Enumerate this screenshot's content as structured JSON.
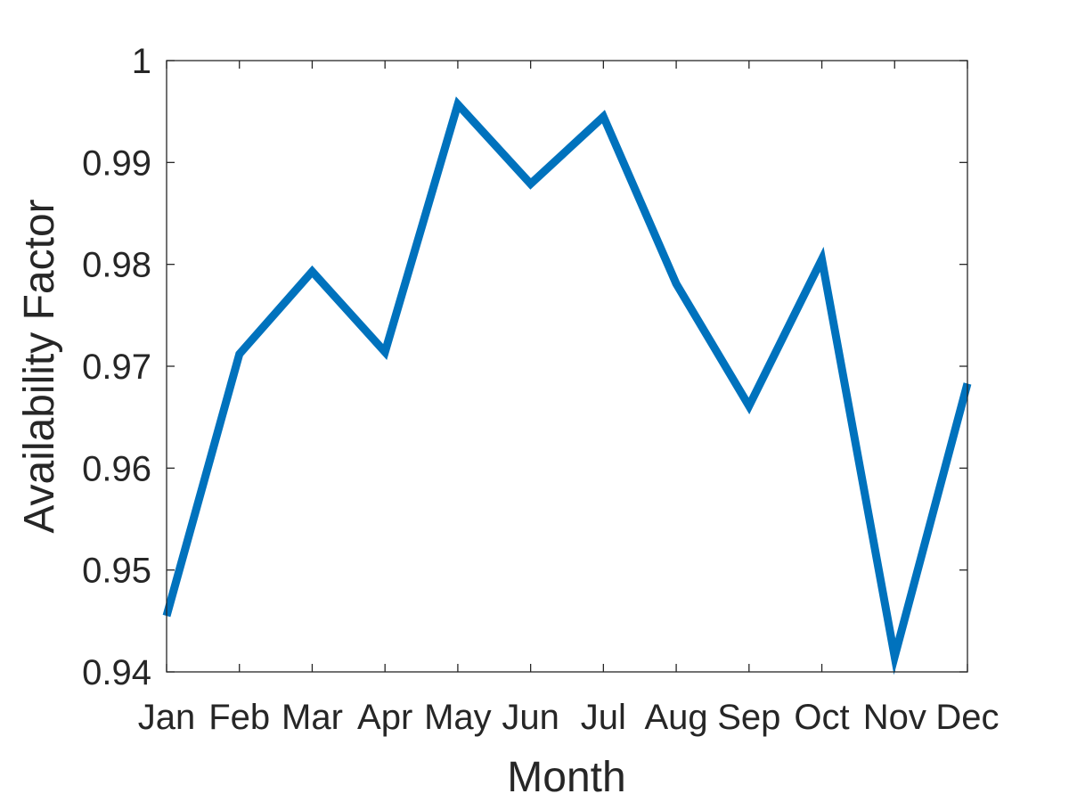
{
  "chart_data": {
    "type": "line",
    "title": "",
    "xlabel": "Month",
    "ylabel": "Availability Factor",
    "categories": [
      "Jan",
      "Feb",
      "Mar",
      "Apr",
      "May",
      "Jun",
      "Jul",
      "Aug",
      "Sep",
      "Oct",
      "Nov",
      "Dec"
    ],
    "series": [
      {
        "values": [
          0.9455,
          0.9712,
          0.9793,
          0.9714,
          0.9957,
          0.9879,
          0.9945,
          0.9781,
          0.9661,
          0.9805,
          0.9415,
          0.9683
        ],
        "color": "#0072BD"
      }
    ],
    "ylim": [
      0.94,
      1.0
    ],
    "yticks": [
      "0.94",
      "0.95",
      "0.96",
      "0.97",
      "0.98",
      "0.99",
      "1"
    ],
    "grid": false,
    "legend": "none"
  }
}
